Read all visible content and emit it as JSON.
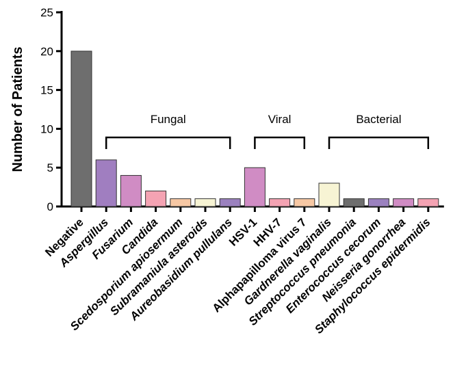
{
  "chart_data": {
    "type": "bar",
    "title": "",
    "xlabel": "",
    "ylabel": "Number of Patients",
    "ylim": [
      0,
      25
    ],
    "yticks": [
      0,
      5,
      10,
      15,
      20,
      25
    ],
    "grid": false,
    "categories": [
      {
        "label": "Negative",
        "value": 20,
        "color": "#6e6e6e",
        "italic": false
      },
      {
        "label": "Aspergillus",
        "value": 6,
        "color": "#a07ec0",
        "italic": true
      },
      {
        "label": "Fusarium",
        "value": 4,
        "color": "#d08cc4",
        "italic": true
      },
      {
        "label": "Candida",
        "value": 2,
        "color": "#f4a3b3",
        "italic": true
      },
      {
        "label": "Scedosporium apiosermum",
        "value": 1,
        "color": "#f7c8a4",
        "italic": true
      },
      {
        "label": "Subramaniula asteroids",
        "value": 1,
        "color": "#f7f4d4",
        "italic": true
      },
      {
        "label": "Aureobasidium pullulans",
        "value": 1,
        "color": "#9b81bf",
        "italic": true
      },
      {
        "label": "HSV-1",
        "value": 5,
        "color": "#d08cc4",
        "italic": false
      },
      {
        "label": "HHV-7",
        "value": 1,
        "color": "#f4a3b3",
        "italic": false
      },
      {
        "label": "Alphapapilloma virus 7",
        "value": 1,
        "color": "#f7c8a4",
        "italic": false
      },
      {
        "label": "Gardnerella vaginalis",
        "value": 3,
        "color": "#f7f4d4",
        "italic": true
      },
      {
        "label": "Streptococcus pneumonia",
        "value": 1,
        "color": "#6e6e6e",
        "italic": true
      },
      {
        "label": "Enterococcus cecorum",
        "value": 1,
        "color": "#9b81bf",
        "italic": true
      },
      {
        "label": "Neisseria gonorrhea",
        "value": 1,
        "color": "#d08cc4",
        "italic": true
      },
      {
        "label": "Staphylococcus epidermidis",
        "value": 1,
        "color": "#f4a3b3",
        "italic": true
      }
    ],
    "groups": [
      {
        "label": "Fungal",
        "start": 1,
        "end": 6
      },
      {
        "label": "Viral",
        "start": 7,
        "end": 9
      },
      {
        "label": "Bacterial",
        "start": 10,
        "end": 14
      }
    ]
  }
}
